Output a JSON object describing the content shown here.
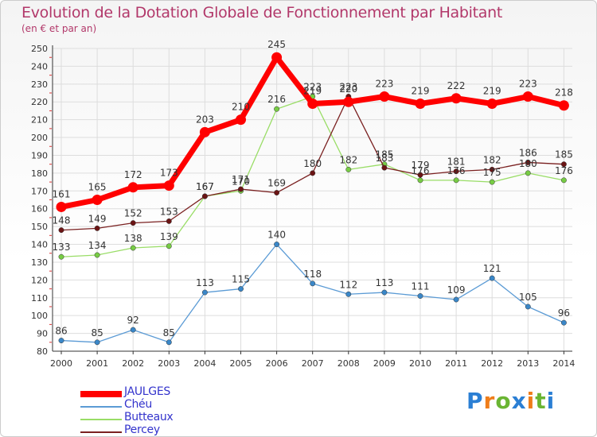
{
  "title": "Evolution de la Dotation Globale de Fonctionnement par Habitant",
  "subtitle": "(en € et par an)",
  "logo": {
    "text": "Proxiti",
    "letter_colors": [
      "#2b7fd4",
      "#ef7d1a",
      "#6ab533",
      "#2b7fd4",
      "#ef7d1a",
      "#6ab533",
      "#2b7fd4"
    ]
  },
  "chart_data": {
    "type": "line",
    "title": "Evolution de la Dotation Globale de Fonctionnement par Habitant",
    "ylabel": "(en € et par an)",
    "xlabel": "",
    "x": [
      "2000",
      "2001",
      "2002",
      "2003",
      "2004",
      "2005",
      "2006",
      "2007",
      "2008",
      "2009",
      "2010",
      "2011",
      "2012",
      "2013",
      "2014"
    ],
    "ylim": [
      80,
      250
    ],
    "yticks": [
      80,
      90,
      100,
      110,
      120,
      130,
      140,
      150,
      160,
      170,
      180,
      190,
      200,
      210,
      220,
      230,
      240,
      250
    ],
    "grid": true,
    "legend_position": "bottom-left",
    "series": [
      {
        "name": "JAULGES",
        "color": "#ff0000",
        "marker_color": "#ff0000",
        "thick": true,
        "values": [
          161,
          165,
          172,
          173,
          203,
          210,
          245,
          219,
          220,
          223,
          219,
          222,
          219,
          223,
          218
        ]
      },
      {
        "name": "Chéu",
        "color": "#5b9bd5",
        "marker_color": "#3a87c8",
        "thick": false,
        "values": [
          86,
          85,
          92,
          85,
          113,
          115,
          140,
          118,
          112,
          113,
          111,
          109,
          121,
          105,
          96
        ]
      },
      {
        "name": "Butteaux",
        "color": "#99dd66",
        "marker_color": "#77cc44",
        "thick": false,
        "values": [
          133,
          134,
          138,
          139,
          167,
          170,
          216,
          223,
          182,
          185,
          176,
          176,
          175,
          180,
          176
        ]
      },
      {
        "name": "Percey",
        "color": "#7a2020",
        "marker_color": "#6b1414",
        "thick": false,
        "values": [
          148,
          149,
          152,
          153,
          167,
          171,
          169,
          180,
          223,
          183,
          179,
          181,
          182,
          186,
          185
        ]
      }
    ]
  }
}
